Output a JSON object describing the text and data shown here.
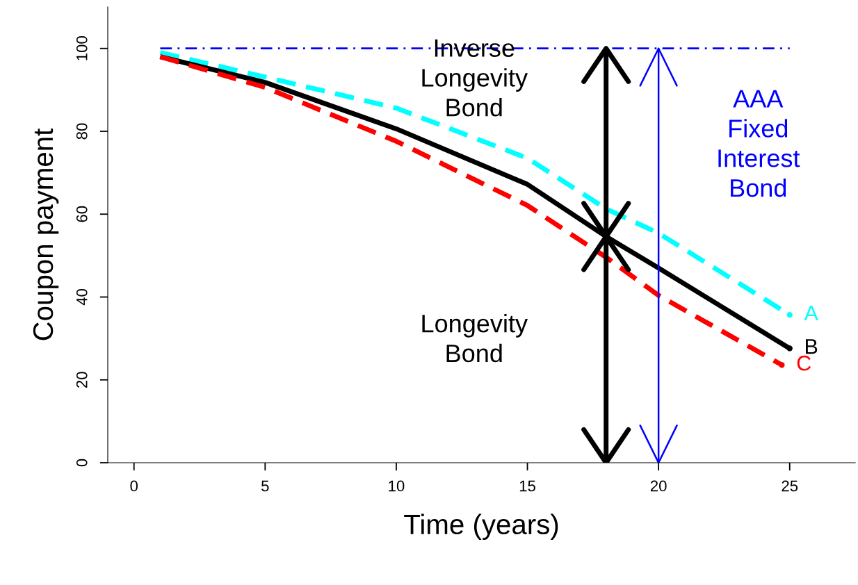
{
  "chart_data": {
    "type": "line",
    "xlabel": "Time (years)",
    "ylabel": "Coupon payment",
    "xlim": [
      -1,
      27.5
    ],
    "ylim": [
      0,
      110
    ],
    "xticks": [
      0,
      5,
      10,
      15,
      20,
      25
    ],
    "yticks": [
      0,
      20,
      40,
      60,
      80,
      100
    ],
    "grid": false,
    "legend": false,
    "series": [
      {
        "name": "A",
        "color": "#00ffff",
        "line_style": "dashed",
        "x": [
          1,
          5,
          10,
          15,
          18,
          20,
          25
        ],
        "values": [
          99,
          93.1,
          85.6,
          73.5,
          61.3,
          55.4,
          35.7
        ]
      },
      {
        "name": "B",
        "color": "#000000",
        "line_style": "solid",
        "x": [
          1,
          5,
          10,
          15,
          18,
          20,
          25
        ],
        "values": [
          98,
          91.8,
          80.6,
          67.2,
          54.6,
          47,
          27.6
        ]
      },
      {
        "name": "C",
        "color": "#ff0000",
        "line_style": "dashed",
        "x": [
          1,
          5,
          10,
          15,
          18,
          20,
          24.7
        ],
        "values": [
          98,
          90.6,
          77.6,
          62.1,
          49.6,
          40.4,
          23.6
        ]
      },
      {
        "color": "#0000ff",
        "line_style": "dashdot",
        "x": [
          1,
          25
        ],
        "values": [
          100,
          100
        ]
      }
    ],
    "ref_lines": [
      {
        "axis": "x",
        "value": 18,
        "color": "#000000"
      },
      {
        "axis": "x",
        "value": 20,
        "color": "#0000ff"
      }
    ],
    "annotations": [
      "Inverse\nLongevity\nBond",
      "Longevity\nBond",
      "AAA\nFixed\nInterest\nBond"
    ]
  }
}
